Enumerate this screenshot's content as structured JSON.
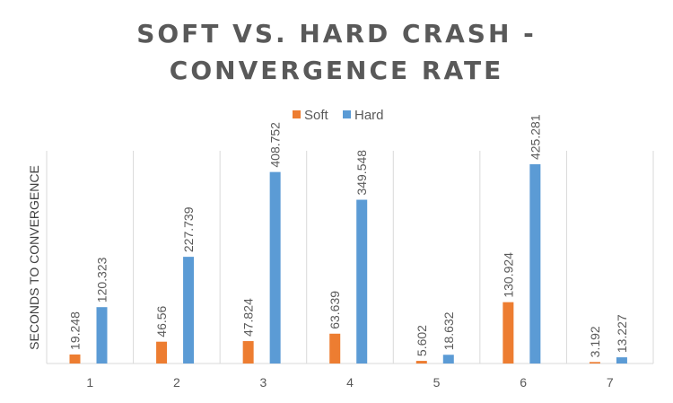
{
  "chart_data": {
    "type": "bar",
    "title_lines": [
      "SOFT VS. HARD CRASH -",
      "CONVERGENCE RATE"
    ],
    "xlabel": "",
    "ylabel": "SECONDS TO CONVERGENCE",
    "categories": [
      "1",
      "2",
      "3",
      "4",
      "5",
      "6",
      "7"
    ],
    "series": [
      {
        "name": "Soft",
        "color": "#ED7D31",
        "values": [
          19.248,
          46.56,
          47.824,
          63.639,
          5.602,
          130.924,
          3.192
        ]
      },
      {
        "name": "Hard",
        "color": "#5B9BD5",
        "values": [
          120.323,
          227.739,
          408.752,
          349.548,
          18.632,
          425.281,
          13.227
        ]
      }
    ],
    "data_labels": true,
    "legend_position": "top",
    "grid": "vertical category separators"
  }
}
